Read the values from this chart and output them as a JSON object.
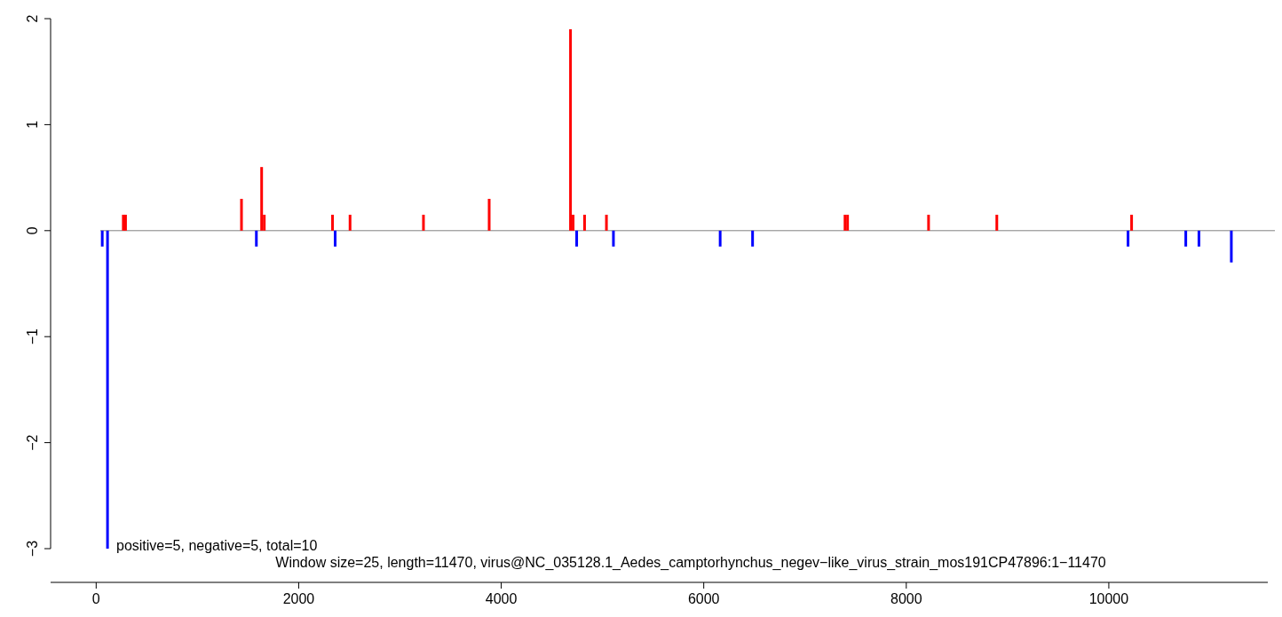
{
  "chart_data": {
    "type": "bar",
    "xlim": [
      -450,
      11570
    ],
    "xticks": [
      0,
      2000,
      4000,
      6000,
      8000,
      10000
    ],
    "ylim": [
      -3,
      2
    ],
    "yticks": [
      -3,
      -2,
      -1,
      0,
      1,
      2
    ],
    "series": [
      {
        "color": "#ff0000",
        "x": [
          268,
          290,
          1435,
          1634,
          1660,
          2334,
          2507,
          3232,
          3881,
          4684,
          4710,
          4823,
          5039,
          7395,
          7420,
          8220,
          8894,
          10225
        ],
        "values": [
          0.15,
          0.15,
          0.3,
          0.6,
          0.15,
          0.15,
          0.15,
          0.15,
          0.3,
          1.9,
          0.15,
          0.15,
          0.15,
          0.15,
          0.15,
          0.15,
          0.15,
          0.15
        ]
      },
      {
        "color": "#0000ff",
        "x": [
          60,
          112,
          1582,
          2360,
          4745,
          5108,
          6162,
          6482,
          10190,
          10760,
          10890,
          11210
        ],
        "values": [
          -0.15,
          -3,
          -0.15,
          -0.15,
          -0.15,
          -0.15,
          -0.15,
          -0.15,
          -0.15,
          -0.15,
          -0.15,
          -0.3
        ]
      }
    ],
    "ref_lines": [
      {
        "axis": "y",
        "value": 0,
        "color": "#808080"
      }
    ],
    "annotations": [
      "positive=5, negative=5, total=10",
      "Window size=25, length=11470, virus@NC_035128.1_Aedes_camptorhynchus_negev−like_virus_strain_mos191CP47896:1−11470"
    ],
    "grid": false
  }
}
